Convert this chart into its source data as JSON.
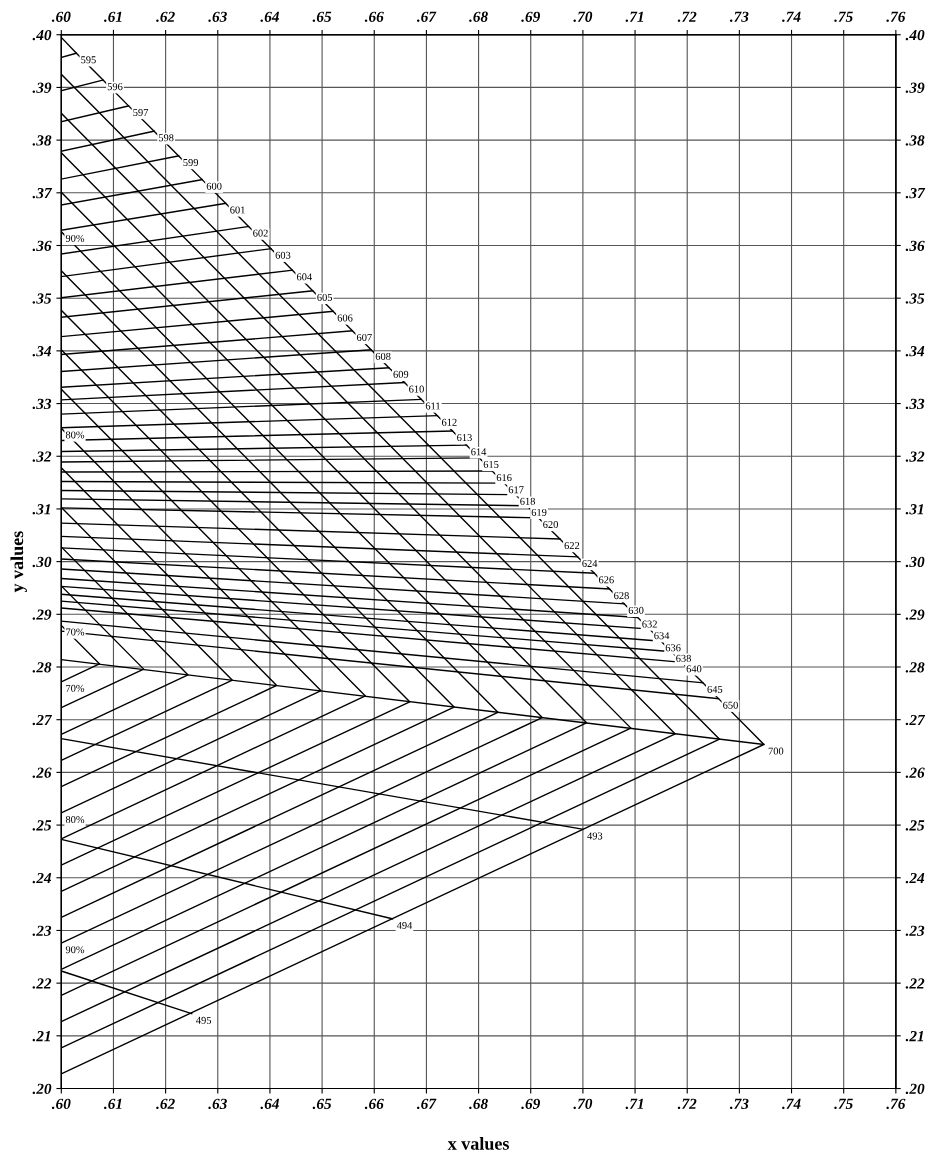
{
  "chart_data": {
    "type": "line",
    "xlabel": "x values",
    "ylabel": "y values",
    "xlim": [
      0.6,
      0.76
    ],
    "ylim": [
      0.2,
      0.4
    ],
    "x2lim": [
      0.6,
      0.76
    ],
    "y2lim": [
      0.2,
      0.4
    ],
    "xticks": [
      {
        "value": 0.6,
        "label": ".60"
      },
      {
        "value": 0.61,
        "label": ".61"
      },
      {
        "value": 0.62,
        "label": ".62"
      },
      {
        "value": 0.63,
        "label": ".63"
      },
      {
        "value": 0.64,
        "label": ".64"
      },
      {
        "value": 0.65,
        "label": ".65"
      },
      {
        "value": 0.66,
        "label": ".66"
      },
      {
        "value": 0.67,
        "label": ".67"
      },
      {
        "value": 0.68,
        "label": ".68"
      },
      {
        "value": 0.69,
        "label": ".69"
      },
      {
        "value": 0.7,
        "label": ".70"
      },
      {
        "value": 0.71,
        "label": ".71"
      },
      {
        "value": 0.72,
        "label": ".72"
      },
      {
        "value": 0.73,
        "label": ".73"
      },
      {
        "value": 0.74,
        "label": ".74"
      },
      {
        "value": 0.75,
        "label": ".75"
      },
      {
        "value": 0.76,
        "label": ".76"
      }
    ],
    "x2ticks": [
      {
        "value": 0.6,
        "label": ".60"
      },
      {
        "value": 0.61,
        "label": ".61"
      },
      {
        "value": 0.62,
        "label": ".62"
      },
      {
        "value": 0.63,
        "label": ".63"
      },
      {
        "value": 0.64,
        "label": ".64"
      },
      {
        "value": 0.65,
        "label": ".65"
      },
      {
        "value": 0.66,
        "label": ".66"
      },
      {
        "value": 0.67,
        "label": ".67"
      },
      {
        "value": 0.68,
        "label": ".68"
      },
      {
        "value": 0.69,
        "label": ".69"
      },
      {
        "value": 0.7,
        "label": ".70"
      },
      {
        "value": 0.71,
        "label": ".71"
      },
      {
        "value": 0.72,
        "label": ".72"
      },
      {
        "value": 0.73,
        "label": ".73"
      },
      {
        "value": 0.74,
        "label": ".74"
      },
      {
        "value": 0.75,
        "label": ".75"
      },
      {
        "value": 0.76,
        "label": ".76"
      }
    ],
    "yticks": [
      {
        "value": 0.2,
        "label": ".20"
      },
      {
        "value": 0.21,
        "label": ".21"
      },
      {
        "value": 0.22,
        "label": ".22"
      },
      {
        "value": 0.23,
        "label": ".23"
      },
      {
        "value": 0.24,
        "label": ".24"
      },
      {
        "value": 0.25,
        "label": ".25"
      },
      {
        "value": 0.26,
        "label": ".26"
      },
      {
        "value": 0.27,
        "label": ".27"
      },
      {
        "value": 0.28,
        "label": ".28"
      },
      {
        "value": 0.29,
        "label": ".29"
      },
      {
        "value": 0.3,
        "label": ".30"
      },
      {
        "value": 0.31,
        "label": ".31"
      },
      {
        "value": 0.32,
        "label": ".32"
      },
      {
        "value": 0.33,
        "label": ".33"
      },
      {
        "value": 0.34,
        "label": ".34"
      },
      {
        "value": 0.35,
        "label": ".35"
      },
      {
        "value": 0.36,
        "label": ".36"
      },
      {
        "value": 0.37,
        "label": ".37"
      },
      {
        "value": 0.38,
        "label": ".38"
      },
      {
        "value": 0.39,
        "label": ".39"
      },
      {
        "value": 0.4,
        "label": ".40"
      }
    ],
    "y2ticks": [
      {
        "value": 0.2,
        "label": ".20"
      },
      {
        "value": 0.21,
        "label": ".21"
      },
      {
        "value": 0.22,
        "label": ".22"
      },
      {
        "value": 0.23,
        "label": ".23"
      },
      {
        "value": 0.24,
        "label": ".24"
      },
      {
        "value": 0.25,
        "label": ".25"
      },
      {
        "value": 0.26,
        "label": ".26"
      },
      {
        "value": 0.27,
        "label": ".27"
      },
      {
        "value": 0.28,
        "label": ".28"
      },
      {
        "value": 0.29,
        "label": ".29"
      },
      {
        "value": 0.3,
        "label": ".30"
      },
      {
        "value": 0.31,
        "label": ".31"
      },
      {
        "value": 0.32,
        "label": ".32"
      },
      {
        "value": 0.33,
        "label": ".33"
      },
      {
        "value": 0.34,
        "label": ".34"
      },
      {
        "value": 0.35,
        "label": ".35"
      },
      {
        "value": 0.36,
        "label": ".36"
      },
      {
        "value": 0.37,
        "label": ".37"
      },
      {
        "value": 0.38,
        "label": ".38"
      },
      {
        "value": 0.39,
        "label": ".39"
      },
      {
        "value": 0.4,
        "label": ".40"
      }
    ],
    "grid": true,
    "marker": "none",
    "line_style": "solid",
    "series": [
      {
        "color": "#000000",
        "x": [
          0.6,
          0.6029,
          0.608,
          0.6129,
          0.6178,
          0.6225,
          0.627,
          0.6315,
          0.6359,
          0.6402,
          0.6443,
          0.6482,
          0.6521,
          0.6558,
          0.6594,
          0.6628,
          0.6658,
          0.669,
          0.6721,
          0.675,
          0.6777,
          0.6801,
          0.6826,
          0.6849,
          0.6871,
          0.6893,
          0.6915,
          0.6956,
          0.699,
          0.7022,
          0.7051,
          0.7079,
          0.7105,
          0.7128,
          0.715,
          0.717,
          0.719,
          0.723,
          0.726,
          0.7347,
          0.6
        ],
        "values": [
          0.3995,
          0.3965,
          0.3914,
          0.3865,
          0.3817,
          0.377,
          0.3725,
          0.368,
          0.3636,
          0.3594,
          0.3553,
          0.3514,
          0.3475,
          0.3438,
          0.3402,
          0.3368,
          0.334,
          0.3308,
          0.3277,
          0.3248,
          0.3221,
          0.3197,
          0.3172,
          0.3149,
          0.3127,
          0.3106,
          0.3083,
          0.3043,
          0.3009,
          0.2978,
          0.2948,
          0.292,
          0.2894,
          0.2872,
          0.2849,
          0.2829,
          0.2809,
          0.277,
          0.274,
          0.2653,
          0.2028
        ]
      },
      {
        "color": "#000000",
        "x": [
          0.6,
          0.6029
        ],
        "values": [
          0.3957,
          0.3965
        ]
      },
      {
        "color": "#000000",
        "x": [
          0.6,
          0.608
        ],
        "values": [
          0.3894,
          0.3914
        ]
      },
      {
        "color": "#000000",
        "x": [
          0.6,
          0.6129
        ],
        "values": [
          0.3835,
          0.3865
        ]
      },
      {
        "color": "#000000",
        "x": [
          0.6,
          0.6178
        ],
        "values": [
          0.3779,
          0.3817
        ]
      },
      {
        "color": "#000000",
        "x": [
          0.6,
          0.6225
        ],
        "values": [
          0.3726,
          0.377
        ]
      },
      {
        "color": "#000000",
        "x": [
          0.6,
          0.627
        ],
        "values": [
          0.3677,
          0.3725
        ]
      },
      {
        "color": "#000000",
        "x": [
          0.6,
          0.6315
        ],
        "values": [
          0.3629,
          0.368
        ]
      },
      {
        "color": "#000000",
        "x": [
          0.6,
          0.6359
        ],
        "values": [
          0.3584,
          0.3636
        ]
      },
      {
        "color": "#000000",
        "x": [
          0.6,
          0.6402
        ],
        "values": [
          0.3541,
          0.3594
        ]
      },
      {
        "color": "#000000",
        "x": [
          0.6,
          0.6443
        ],
        "values": [
          0.3501,
          0.3553
        ]
      },
      {
        "color": "#000000",
        "x": [
          0.6,
          0.6482
        ],
        "values": [
          0.3464,
          0.3514
        ]
      },
      {
        "color": "#000000",
        "x": [
          0.6,
          0.6521
        ],
        "values": [
          0.3427,
          0.3475
        ]
      },
      {
        "color": "#000000",
        "x": [
          0.6,
          0.6558
        ],
        "values": [
          0.3393,
          0.3438
        ]
      },
      {
        "color": "#000000",
        "x": [
          0.6,
          0.6594
        ],
        "values": [
          0.3361,
          0.3402
        ]
      },
      {
        "color": "#000000",
        "x": [
          0.6,
          0.6628
        ],
        "values": [
          0.3331,
          0.3368
        ]
      },
      {
        "color": "#000000",
        "x": [
          0.6,
          0.6658
        ],
        "values": [
          0.3307,
          0.334
        ]
      },
      {
        "color": "#000000",
        "x": [
          0.6,
          0.669
        ],
        "values": [
          0.328,
          0.3308
        ]
      },
      {
        "color": "#000000",
        "x": [
          0.6,
          0.6721
        ],
        "values": [
          0.3254,
          0.3277
        ]
      },
      {
        "color": "#000000",
        "x": [
          0.6,
          0.675
        ],
        "values": [
          0.323,
          0.3248
        ]
      },
      {
        "color": "#000000",
        "x": [
          0.6,
          0.6777
        ],
        "values": [
          0.3209,
          0.3221
        ]
      },
      {
        "color": "#000000",
        "x": [
          0.6,
          0.6801
        ],
        "values": [
          0.3189,
          0.3197
        ]
      },
      {
        "color": "#000000",
        "x": [
          0.6,
          0.6826
        ],
        "values": [
          0.317,
          0.3172
        ]
      },
      {
        "color": "#000000",
        "x": [
          0.6,
          0.6849
        ],
        "values": [
          0.3152,
          0.3149
        ]
      },
      {
        "color": "#000000",
        "x": [
          0.6,
          0.6871
        ],
        "values": [
          0.3135,
          0.3127
        ]
      },
      {
        "color": "#000000",
        "x": [
          0.6,
          0.6893
        ],
        "values": [
          0.3119,
          0.3106
        ]
      },
      {
        "color": "#000000",
        "x": [
          0.6,
          0.6915
        ],
        "values": [
          0.3102,
          0.3083
        ]
      },
      {
        "color": "#000000",
        "x": [
          0.6,
          0.6956
        ],
        "values": [
          0.3073,
          0.3043
        ]
      },
      {
        "color": "#000000",
        "x": [
          0.6,
          0.699
        ],
        "values": [
          0.3048,
          0.3009
        ]
      },
      {
        "color": "#000000",
        "x": [
          0.6,
          0.7022
        ],
        "values": [
          0.3026,
          0.2978
        ]
      },
      {
        "color": "#000000",
        "x": [
          0.6,
          0.7051
        ],
        "values": [
          0.3005,
          0.2948
        ]
      },
      {
        "color": "#000000",
        "x": [
          0.6,
          0.7079
        ],
        "values": [
          0.2986,
          0.292
        ]
      },
      {
        "color": "#000000",
        "x": [
          0.6,
          0.7105
        ],
        "values": [
          0.2968,
          0.2894
        ]
      },
      {
        "color": "#000000",
        "x": [
          0.6,
          0.7128
        ],
        "values": [
          0.2953,
          0.2872
        ]
      },
      {
        "color": "#000000",
        "x": [
          0.6,
          0.715
        ],
        "values": [
          0.2938,
          0.2849
        ]
      },
      {
        "color": "#000000",
        "x": [
          0.6,
          0.717
        ],
        "values": [
          0.2925,
          0.2829
        ]
      },
      {
        "color": "#000000",
        "x": [
          0.6,
          0.719
        ],
        "values": [
          0.2912,
          0.2809
        ]
      },
      {
        "color": "#000000",
        "x": [
          0.6,
          0.723
        ],
        "values": [
          0.2887,
          0.277
        ]
      },
      {
        "color": "#000000",
        "x": [
          0.6,
          0.726
        ],
        "values": [
          0.2868,
          0.274
        ]
      },
      {
        "color": "#000000",
        "x": [
          0.6,
          0.7347
        ],
        "values": [
          0.2814,
          0.2653
        ]
      },
      {
        "color": "#000000",
        "x": [
          0.6,
          0.7262,
          0.6
        ],
        "values": [
          0.3925,
          0.2663,
          0.2077
        ]
      },
      {
        "color": "#000000",
        "x": [
          0.6,
          0.7177,
          0.6
        ],
        "values": [
          0.3851,
          0.2673,
          0.2127
        ]
      },
      {
        "color": "#000000",
        "x": [
          0.6,
          0.7092,
          0.6
        ],
        "values": [
          0.3776,
          0.2684,
          0.2177
        ]
      },
      {
        "color": "#000000",
        "x": [
          0.6,
          0.7007,
          0.6
        ],
        "values": [
          0.3701,
          0.2694,
          0.2226
        ]
      },
      {
        "color": "#000000",
        "x": [
          0.6,
          0.6922,
          0.6
        ],
        "values": [
          0.3626,
          0.2704,
          0.2276
        ]
      },
      {
        "color": "#000000",
        "x": [
          0.6,
          0.6837,
          0.6
        ],
        "values": [
          0.3552,
          0.2714,
          0.2325
        ]
      },
      {
        "color": "#000000",
        "x": [
          0.6,
          0.6753,
          0.6
        ],
        "values": [
          0.3477,
          0.2724,
          0.2374
        ]
      },
      {
        "color": "#000000",
        "x": [
          0.6,
          0.6668,
          0.6
        ],
        "values": [
          0.3402,
          0.2734,
          0.2424
        ]
      },
      {
        "color": "#000000",
        "x": [
          0.6,
          0.6583,
          0.6
        ],
        "values": [
          0.3327,
          0.2745,
          0.2474
        ]
      },
      {
        "color": "#000000",
        "x": [
          0.6,
          0.6498,
          0.6
        ],
        "values": [
          0.3253,
          0.2755,
          0.2523
        ]
      },
      {
        "color": "#000000",
        "x": [
          0.6,
          0.6413,
          0.6
        ],
        "values": [
          0.3178,
          0.2765,
          0.2573
        ]
      },
      {
        "color": "#000000",
        "x": [
          0.6,
          0.6328,
          0.6
        ],
        "values": [
          0.3103,
          0.2775,
          0.2623
        ]
      },
      {
        "color": "#000000",
        "x": [
          0.6,
          0.6243,
          0.6
        ],
        "values": [
          0.3028,
          0.2785,
          0.2672
        ]
      },
      {
        "color": "#000000",
        "x": [
          0.6,
          0.6158,
          0.6
        ],
        "values": [
          0.2954,
          0.2796,
          0.2723
        ]
      },
      {
        "color": "#000000",
        "x": [
          0.6,
          0.6073,
          0.6
        ],
        "values": [
          0.2879,
          0.2806,
          0.2772
        ]
      },
      {
        "color": "#000000",
        "x": [
          0.6,
          0.7
        ],
        "values": [
          0.2664,
          0.2492
        ]
      },
      {
        "color": "#000000",
        "x": [
          0.6,
          0.6635
        ],
        "values": [
          0.2473,
          0.2322
        ]
      },
      {
        "color": "#000000",
        "x": [
          0.6,
          0.625
        ],
        "values": [
          0.2223,
          0.2142
        ]
      }
    ],
    "annotations": [
      {
        "text": "595",
        "x": 0.6029,
        "y": 0.3965
      },
      {
        "text": "596",
        "x": 0.608,
        "y": 0.3914
      },
      {
        "text": "597",
        "x": 0.6129,
        "y": 0.3865
      },
      {
        "text": "598",
        "x": 0.6178,
        "y": 0.3817
      },
      {
        "text": "599",
        "x": 0.6225,
        "y": 0.377
      },
      {
        "text": "600",
        "x": 0.627,
        "y": 0.3725
      },
      {
        "text": "601",
        "x": 0.6315,
        "y": 0.368
      },
      {
        "text": "602",
        "x": 0.6359,
        "y": 0.3636
      },
      {
        "text": "603",
        "x": 0.6402,
        "y": 0.3594
      },
      {
        "text": "604",
        "x": 0.6443,
        "y": 0.3553
      },
      {
        "text": "605",
        "x": 0.6482,
        "y": 0.3514
      },
      {
        "text": "606",
        "x": 0.6521,
        "y": 0.3475
      },
      {
        "text": "607",
        "x": 0.6558,
        "y": 0.3438
      },
      {
        "text": "608",
        "x": 0.6594,
        "y": 0.3402
      },
      {
        "text": "609",
        "x": 0.6628,
        "y": 0.3368
      },
      {
        "text": "610",
        "x": 0.6658,
        "y": 0.334
      },
      {
        "text": "611",
        "x": 0.669,
        "y": 0.3308
      },
      {
        "text": "612",
        "x": 0.6721,
        "y": 0.3277
      },
      {
        "text": "613",
        "x": 0.675,
        "y": 0.3248
      },
      {
        "text": "614",
        "x": 0.6777,
        "y": 0.3221
      },
      {
        "text": "615",
        "x": 0.6801,
        "y": 0.3197
      },
      {
        "text": "616",
        "x": 0.6826,
        "y": 0.3172
      },
      {
        "text": "617",
        "x": 0.6849,
        "y": 0.3149
      },
      {
        "text": "618",
        "x": 0.6871,
        "y": 0.3127
      },
      {
        "text": "619",
        "x": 0.6893,
        "y": 0.3106
      },
      {
        "text": "620",
        "x": 0.6915,
        "y": 0.3083
      },
      {
        "text": "622",
        "x": 0.6956,
        "y": 0.3043
      },
      {
        "text": "624",
        "x": 0.699,
        "y": 0.3009
      },
      {
        "text": "626",
        "x": 0.7022,
        "y": 0.2978
      },
      {
        "text": "628",
        "x": 0.7051,
        "y": 0.2948
      },
      {
        "text": "630",
        "x": 0.7079,
        "y": 0.292
      },
      {
        "text": "632",
        "x": 0.7105,
        "y": 0.2894
      },
      {
        "text": "634",
        "x": 0.7128,
        "y": 0.2872
      },
      {
        "text": "636",
        "x": 0.715,
        "y": 0.2849
      },
      {
        "text": "638",
        "x": 0.717,
        "y": 0.2829
      },
      {
        "text": "640",
        "x": 0.719,
        "y": 0.2809
      },
      {
        "text": "645",
        "x": 0.723,
        "y": 0.277
      },
      {
        "text": "650",
        "x": 0.726,
        "y": 0.274
      },
      {
        "text": "700",
        "x": 0.7347,
        "y": 0.2653
      },
      {
        "text": "493",
        "x": 0.7,
        "y": 0.2492
      },
      {
        "text": "494",
        "x": 0.6635,
        "y": 0.2322
      },
      {
        "text": "495",
        "x": 0.625,
        "y": 0.2142
      },
      {
        "text": "90%",
        "x": 0.6,
        "y": 0.3626
      },
      {
        "text": "80%",
        "x": 0.6,
        "y": 0.3253
      },
      {
        "text": "70%",
        "x": 0.6,
        "y": 0.2879
      },
      {
        "text": "70%",
        "x": 0.6,
        "y": 0.2772
      },
      {
        "text": "80%",
        "x": 0.6,
        "y": 0.2523
      },
      {
        "text": "90%",
        "x": 0.6,
        "y": 0.2276
      }
    ]
  }
}
